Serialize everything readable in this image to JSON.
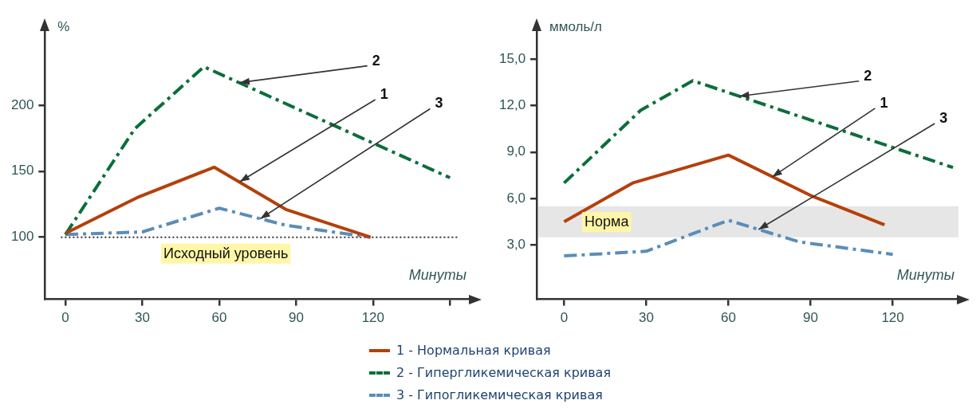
{
  "chart_data": [
    {
      "type": "line",
      "ylabel": "%",
      "xlabel": "Минуты",
      "xlim": [
        -8,
        158
      ],
      "ylim": [
        53,
        256
      ],
      "xticks": [
        0,
        30,
        60,
        90,
        120,
        {
          "value": 150,
          "label": null
        }
      ],
      "yticks": [
        100,
        150,
        200
      ],
      "grid": false,
      "marker": "none",
      "legend": "bottom",
      "series": [
        {
          "name": "1 - Нормальная кривая",
          "color": "#b5400c",
          "line_style": "solid",
          "x": [
            0,
            28,
            58,
            86,
            119
          ],
          "values": [
            103,
            130,
            153,
            121,
            100
          ]
        },
        {
          "name": "2 - Гипергликемическая кривая",
          "color": "#0b6e3a",
          "line_style": "dashed",
          "x": [
            0,
            27,
            54,
            150
          ],
          "values": [
            102,
            182,
            229,
            145
          ]
        },
        {
          "name": "3 - Гипогликемическая кривая",
          "color": "#5b8db8",
          "line_style": "dashed",
          "x": [
            0,
            30,
            60,
            86,
            119
          ],
          "values": [
            102,
            104,
            122,
            109,
            100
          ]
        }
      ],
      "ref_lines": [
        {
          "axis": "y",
          "value": 100,
          "label": "Исходный уровень",
          "line_style": "dotted",
          "color": "#333333"
        }
      ],
      "annotations": [
        {
          "text": "2",
          "x": 68,
          "y": 217
        },
        {
          "text": "1",
          "x": 68,
          "y": 142
        },
        {
          "text": "3",
          "x": 76,
          "y": 114
        }
      ]
    },
    {
      "type": "line",
      "ylabel": "ммоль/л",
      "xlabel": "Минуты",
      "xlim": [
        -10,
        144
      ],
      "ylim": [
        -0.5,
        16.8
      ],
      "xticks": [
        0,
        30,
        60,
        90,
        120
      ],
      "yticks": [
        {
          "value": 3,
          "label": "3,0"
        },
        {
          "value": 6,
          "label": "6,0"
        },
        {
          "value": 9,
          "label": "9,0"
        },
        {
          "value": 12,
          "label": "12,0"
        },
        {
          "value": 15,
          "label": "15,0"
        }
      ],
      "grid": false,
      "marker": "none",
      "series": [
        {
          "color": "#b5400c",
          "line_style": "solid",
          "x": [
            0,
            25,
            60,
            90,
            117
          ],
          "values": [
            4.5,
            7.0,
            8.8,
            6.2,
            4.3
          ]
        },
        {
          "color": "#0b6e3a",
          "line_style": "dashed",
          "x": [
            0,
            28,
            47,
            142
          ],
          "values": [
            7.0,
            11.7,
            13.6,
            8.0
          ]
        },
        {
          "color": "#5b8db8",
          "line_style": "dashed",
          "x": [
            0,
            30,
            60,
            86,
            120
          ],
          "values": [
            2.3,
            2.6,
            4.6,
            3.2,
            2.4
          ]
        }
      ],
      "bands": [
        {
          "axis": "y",
          "from": 3.5,
          "to": 5.5,
          "label": "Норма",
          "color": "#e6e6e6"
        }
      ],
      "annotations": [
        {
          "text": "2",
          "x": 64,
          "y": 12.6
        },
        {
          "text": "1",
          "x": 76,
          "y": 7.4
        },
        {
          "text": "3",
          "x": 71,
          "y": 4.0
        }
      ]
    }
  ]
}
